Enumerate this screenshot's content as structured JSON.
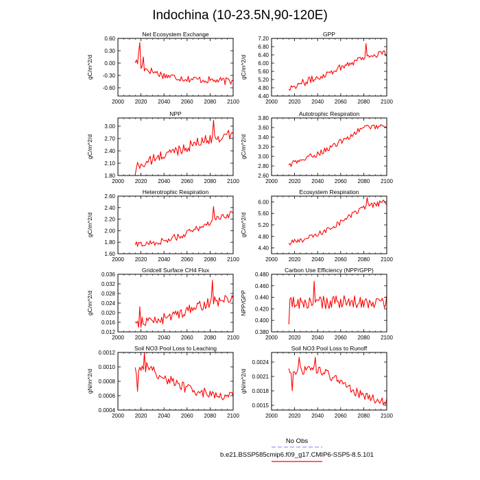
{
  "title": "Indochina (10-23.5N,90-120E)",
  "legend": {
    "placement": "bottom-center",
    "items": [
      {
        "label": "No Obs",
        "color": "#9999ff",
        "dash": "dashed"
      },
      {
        "label": "b.e21.BSSP585cmip6.f09_g17.CMIP6-SSP5-8.5.101",
        "color": "#ff0000",
        "dash": "solid"
      }
    ]
  },
  "colors": {
    "series": "#ff0000",
    "obs": "#9999ff",
    "axis": "#000000"
  },
  "chart_data": [
    {
      "type": "line",
      "title": "Net Ecosystem Exchange",
      "ylabel": "gC/m^2/d",
      "xlim": [
        2000,
        2100
      ],
      "ylim": [
        -0.8,
        0.6
      ],
      "xticks": [
        "2000",
        "2020",
        "2040",
        "2060",
        "2080",
        "2100"
      ],
      "yticks": [
        "0.60",
        "0.30",
        "0.00",
        "-0.30",
        "-0.60"
      ],
      "start": 2015,
      "end": 2100,
      "trend": [
        [
          2015,
          0.05
        ],
        [
          2020,
          -0.1
        ],
        [
          2040,
          -0.3
        ],
        [
          2060,
          -0.38
        ],
        [
          2100,
          -0.45
        ]
      ],
      "noise": 0.09,
      "peaks": [
        [
          2019,
          0.5
        ],
        [
          2022,
          0.15
        ],
        [
          2018,
          0.25
        ]
      ]
    },
    {
      "type": "line",
      "title": "GPP",
      "ylabel": "gC/m^2/d",
      "xlim": [
        2000,
        2100
      ],
      "ylim": [
        4.4,
        7.2
      ],
      "xticks": [
        "2000",
        "2020",
        "2040",
        "2060",
        "2080",
        "2100"
      ],
      "yticks": [
        "7.20",
        "6.80",
        "6.40",
        "6.00",
        "5.60",
        "5.20",
        "4.80",
        "4.40"
      ],
      "start": 2015,
      "end": 2100,
      "trend": [
        [
          2015,
          4.8
        ],
        [
          2040,
          5.3
        ],
        [
          2060,
          5.8
        ],
        [
          2080,
          6.3
        ],
        [
          2100,
          6.5
        ]
      ],
      "noise": 0.18,
      "peaks": [
        [
          2082,
          6.95
        ]
      ]
    },
    {
      "type": "line",
      "title": "NPP",
      "ylabel": "gC/m^2/d",
      "xlim": [
        2000,
        2100
      ],
      "ylim": [
        1.8,
        3.2
      ],
      "xticks": [
        "2000",
        "2020",
        "2040",
        "2060",
        "2080",
        "2100"
      ],
      "yticks": [
        "3.00",
        "2.70",
        "2.40",
        "2.10",
        "1.80"
      ],
      "start": 2015,
      "end": 2100,
      "trend": [
        [
          2015,
          2.0
        ],
        [
          2040,
          2.3
        ],
        [
          2060,
          2.5
        ],
        [
          2080,
          2.7
        ],
        [
          2100,
          2.8
        ]
      ],
      "noise": 0.13,
      "peaks": [
        [
          2083,
          3.15
        ],
        [
          2015,
          1.82
        ]
      ]
    },
    {
      "type": "line",
      "title": "Autotrophic Respiration",
      "ylabel": "gC/m^2/d",
      "xlim": [
        2000,
        2100
      ],
      "ylim": [
        2.6,
        3.8
      ],
      "xticks": [
        "2000",
        "2020",
        "2040",
        "2060",
        "2080",
        "2100"
      ],
      "yticks": [
        "3.80",
        "3.60",
        "3.40",
        "3.20",
        "3.00",
        "2.80",
        "2.60"
      ],
      "start": 2015,
      "end": 2100,
      "trend": [
        [
          2015,
          2.82
        ],
        [
          2040,
          3.05
        ],
        [
          2060,
          3.3
        ],
        [
          2080,
          3.6
        ],
        [
          2100,
          3.65
        ]
      ],
      "noise": 0.06,
      "peaks": []
    },
    {
      "type": "line",
      "title": "Heterotrophic Respiration",
      "ylabel": "gC/m^2/d",
      "xlim": [
        2000,
        2100
      ],
      "ylim": [
        1.6,
        2.6
      ],
      "xticks": [
        "2000",
        "2020",
        "2040",
        "2060",
        "2080",
        "2100"
      ],
      "yticks": [
        "2.60",
        "2.40",
        "2.20",
        "2.00",
        "1.80",
        "1.60"
      ],
      "start": 2015,
      "end": 2100,
      "trend": [
        [
          2015,
          1.75
        ],
        [
          2040,
          1.82
        ],
        [
          2060,
          1.95
        ],
        [
          2080,
          2.15
        ],
        [
          2100,
          2.3
        ]
      ],
      "noise": 0.06,
      "peaks": [
        [
          2083,
          2.42
        ]
      ]
    },
    {
      "type": "line",
      "title": "Ecosystem Respiration",
      "ylabel": "gC/m^2/d",
      "xlim": [
        2000,
        2100
      ],
      "ylim": [
        4.2,
        6.2
      ],
      "xticks": [
        "2000",
        "2020",
        "2040",
        "2060",
        "2080",
        "2100"
      ],
      "yticks": [
        "6.00",
        "5.60",
        "5.20",
        "4.80",
        "4.40"
      ],
      "start": 2015,
      "end": 2100,
      "trend": [
        [
          2015,
          4.55
        ],
        [
          2040,
          4.85
        ],
        [
          2060,
          5.3
        ],
        [
          2080,
          5.8
        ],
        [
          2100,
          6.0
        ]
      ],
      "noise": 0.1,
      "peaks": [
        [
          2083,
          6.15
        ]
      ]
    },
    {
      "type": "line",
      "title": "Gridcell Surface CH4 Flux",
      "ylabel": "gC/m^2/d",
      "xlim": [
        2000,
        2100
      ],
      "ylim": [
        0.012,
        0.036
      ],
      "xticks": [
        "2000",
        "2020",
        "2040",
        "2060",
        "2080",
        "2100"
      ],
      "yticks": [
        "0.036",
        "0.032",
        "0.028",
        "0.024",
        "0.020",
        "0.016",
        "0.012"
      ],
      "start": 2015,
      "end": 2100,
      "trend": [
        [
          2015,
          0.0155
        ],
        [
          2040,
          0.0175
        ],
        [
          2060,
          0.021
        ],
        [
          2080,
          0.024
        ],
        [
          2100,
          0.026
        ]
      ],
      "noise": 0.0023,
      "peaks": [
        [
          2082,
          0.0335
        ],
        [
          2019,
          0.0225
        ]
      ]
    },
    {
      "type": "line",
      "title": "Carbon Use Efficiency (NPP/GPP)",
      "ylabel": "NPP/GPP",
      "xlim": [
        2000,
        2100
      ],
      "ylim": [
        0.38,
        0.48
      ],
      "xticks": [
        "2000",
        "2020",
        "2040",
        "2060",
        "2080",
        "2100"
      ],
      "yticks": [
        "0.480",
        "0.460",
        "0.440",
        "0.420",
        "0.400",
        "0.380"
      ],
      "start": 2015,
      "end": 2100,
      "trend": [
        [
          2015,
          0.43
        ],
        [
          2100,
          0.432
        ]
      ],
      "noise": 0.012,
      "peaks": [
        [
          2015,
          0.393
        ],
        [
          2037,
          0.468
        ]
      ]
    },
    {
      "type": "line",
      "title": "Soil NO3 Pool Loss to Leaching",
      "ylabel": "gN/m^2/d",
      "xlim": [
        2000,
        2100
      ],
      "ylim": [
        0.0004,
        0.0012
      ],
      "xticks": [
        "2000",
        "2020",
        "2040",
        "2060",
        "2080",
        "2100"
      ],
      "yticks": [
        "0.0012",
        "0.0010",
        "0.0008",
        "0.0006",
        "0.0004"
      ],
      "start": 2015,
      "end": 2100,
      "trend": [
        [
          2015,
          0.00095
        ],
        [
          2025,
          0.001
        ],
        [
          2040,
          0.00085
        ],
        [
          2060,
          0.0007
        ],
        [
          2080,
          0.00062
        ],
        [
          2100,
          0.0006
        ]
      ],
      "noise": 7e-05,
      "peaks": [
        [
          2023,
          0.00121
        ],
        [
          2017,
          0.00066
        ]
      ]
    },
    {
      "type": "line",
      "title": "Soil NO3 Pool Loss to Runoff",
      "ylabel": "gN/m^2/d",
      "xlim": [
        2000,
        2100
      ],
      "ylim": [
        0.0014,
        0.0026
      ],
      "xticks": [
        "2000",
        "2020",
        "2040",
        "2060",
        "2080",
        "2100"
      ],
      "yticks": [
        "0.0024",
        "0.0021",
        "0.0018",
        "0.0015"
      ],
      "start": 2015,
      "end": 2100,
      "trend": [
        [
          2015,
          0.0022
        ],
        [
          2040,
          0.00225
        ],
        [
          2060,
          0.002
        ],
        [
          2075,
          0.00175
        ],
        [
          2100,
          0.00155
        ]
      ],
      "noise": 9e-05,
      "peaks": [
        [
          2024,
          0.0025
        ],
        [
          2038,
          0.0025
        ],
        [
          2018,
          0.0018
        ]
      ]
    }
  ]
}
